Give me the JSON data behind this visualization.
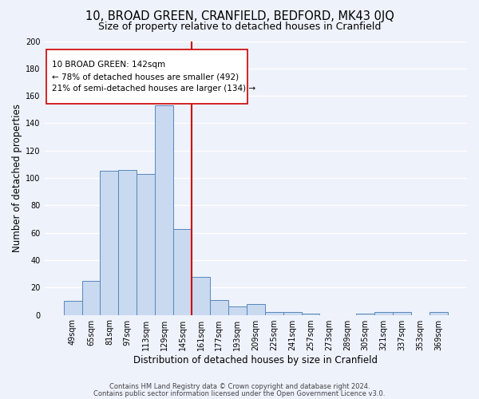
{
  "title": "10, BROAD GREEN, CRANFIELD, BEDFORD, MK43 0JQ",
  "subtitle": "Size of property relative to detached houses in Cranfield",
  "xlabel": "Distribution of detached houses by size in Cranfield",
  "ylabel": "Number of detached properties",
  "bar_labels": [
    "49sqm",
    "65sqm",
    "81sqm",
    "97sqm",
    "113sqm",
    "129sqm",
    "145sqm",
    "161sqm",
    "177sqm",
    "193sqm",
    "209sqm",
    "225sqm",
    "241sqm",
    "257sqm",
    "273sqm",
    "289sqm",
    "305sqm",
    "321sqm",
    "337sqm",
    "353sqm",
    "369sqm"
  ],
  "bar_values": [
    10,
    25,
    105,
    106,
    103,
    153,
    63,
    28,
    11,
    6,
    8,
    2,
    2,
    1,
    0,
    0,
    1,
    2,
    2,
    0,
    2
  ],
  "bar_color": "#c9d9f0",
  "bar_edge_color": "#5588bb",
  "vline_x_index": 6,
  "vline_color": "#cc0000",
  "ylim": [
    0,
    200
  ],
  "yticks": [
    0,
    20,
    40,
    60,
    80,
    100,
    120,
    140,
    160,
    180,
    200
  ],
  "ann_line1": "10 BROAD GREEN: 142sqm",
  "ann_line2": "← 78% of detached houses are smaller (492)",
  "ann_line3": "21% of semi-detached houses are larger (134) →",
  "footer_line1": "Contains HM Land Registry data © Crown copyright and database right 2024.",
  "footer_line2": "Contains public sector information licensed under the Open Government Licence v3.0.",
  "background_color": "#eef2fb",
  "grid_color": "#ffffff",
  "title_fontsize": 10.5,
  "subtitle_fontsize": 9,
  "axis_label_fontsize": 8.5,
  "tick_fontsize": 7,
  "ann_fontsize": 7.5,
  "footer_fontsize": 6
}
